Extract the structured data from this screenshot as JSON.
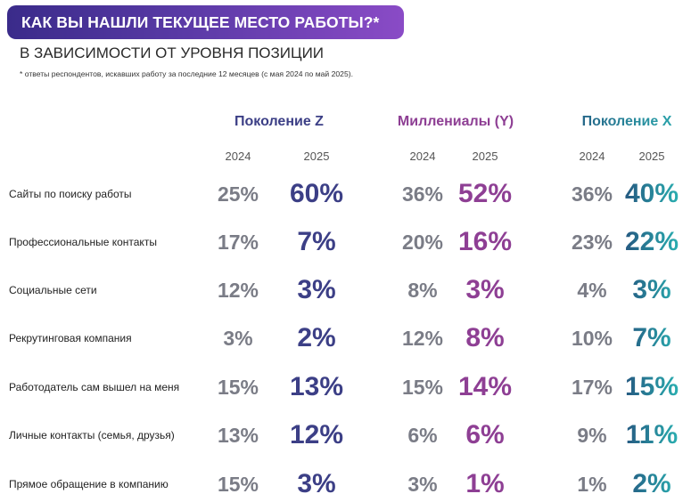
{
  "header": {
    "title": "КАК ВЫ НАШЛИ ТЕКУЩЕЕ МЕСТО РАБОТЫ?*",
    "subtitle": "В ЗАВИСИМОСТИ ОТ УРОВНЯ ПОЗИЦИИ",
    "footnote": "*  ответы респондентов, искавших работу за последние 12 месяцев (с мая 2024 по май 2025)."
  },
  "colors": {
    "title_bg_start": "#3a2b8a",
    "title_bg_end": "#8a4bc6",
    "value_2024": "#7a7c86",
    "gen_z": "#3c3f86",
    "millennials": "#8e3f94",
    "gen_x_start": "#25557f",
    "gen_x_end": "#2ab3b3"
  },
  "chart_data": {
    "type": "table",
    "years": [
      "2024",
      "2025"
    ],
    "groups": [
      {
        "name": "Поколение Z",
        "color": "#3c3f86"
      },
      {
        "name": "Миллениалы (Y)",
        "color": "#8e3f94"
      },
      {
        "name": "Поколение X",
        "color": "#23669a"
      }
    ],
    "rows": [
      {
        "label": "Сайты по поиску работы",
        "values": [
          [
            "25%",
            "60%"
          ],
          [
            "36%",
            "52%"
          ],
          [
            "36%",
            "40%"
          ]
        ]
      },
      {
        "label": "Профессиональные контакты",
        "values": [
          [
            "17%",
            "7%"
          ],
          [
            "20%",
            "16%"
          ],
          [
            "23%",
            "22%"
          ]
        ]
      },
      {
        "label": "Социальные сети",
        "values": [
          [
            "12%",
            "3%"
          ],
          [
            "8%",
            "3%"
          ],
          [
            "4%",
            "3%"
          ]
        ]
      },
      {
        "label": "Рекрутинговая компания",
        "values": [
          [
            "3%",
            "2%"
          ],
          [
            "12%",
            "8%"
          ],
          [
            "10%",
            "7%"
          ]
        ]
      },
      {
        "label": "Работодатель сам вышел на меня",
        "values": [
          [
            "15%",
            "13%"
          ],
          [
            "15%",
            "14%"
          ],
          [
            "17%",
            "15%"
          ]
        ]
      },
      {
        "label": "Личные контакты (семья, друзья)",
        "values": [
          [
            "13%",
            "12%"
          ],
          [
            "6%",
            "6%"
          ],
          [
            "9%",
            "11%"
          ]
        ]
      },
      {
        "label": "Прямое обращение в компанию",
        "values": [
          [
            "15%",
            "3%"
          ],
          [
            "3%",
            "1%"
          ],
          [
            "1%",
            "2%"
          ]
        ]
      }
    ]
  }
}
